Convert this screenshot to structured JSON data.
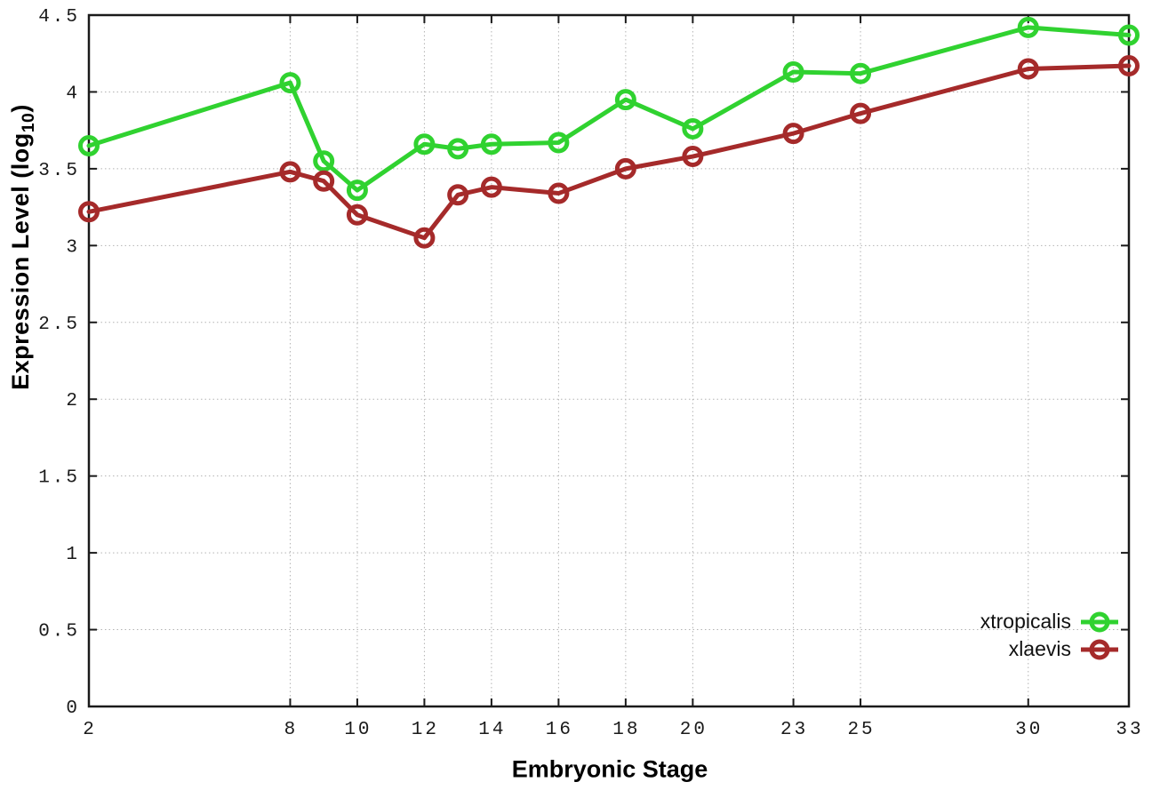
{
  "chart_data": {
    "type": "line",
    "title": "",
    "xlabel": "Embryonic Stage",
    "ylabel_prefix": "Expression Level (log",
    "ylabel_subscript": "10",
    "ylabel_suffix": ")",
    "xlim": [
      2,
      33
    ],
    "ylim": [
      0,
      4.5
    ],
    "grid": true,
    "legend_position": "bottom-right-inside",
    "x_ticks": [
      {
        "label": "2",
        "value": 2
      },
      {
        "label": "8",
        "value": 8
      },
      {
        "label": "10",
        "value": 10
      },
      {
        "label": "12",
        "value": 12
      },
      {
        "label": "14",
        "value": 14
      },
      {
        "label": "16",
        "value": 16
      },
      {
        "label": "18",
        "value": 18
      },
      {
        "label": "20",
        "value": 20
      },
      {
        "label": "23",
        "value": 23
      },
      {
        "label": "25",
        "value": 25
      },
      {
        "label": "30",
        "value": 30
      },
      {
        "label": "33",
        "value": 33
      }
    ],
    "y_ticks": [
      {
        "label": "0",
        "value": 0
      },
      {
        "label": "0.5",
        "value": 0.5
      },
      {
        "label": "1",
        "value": 1
      },
      {
        "label": "1.5",
        "value": 1.5
      },
      {
        "label": "2",
        "value": 2
      },
      {
        "label": "2.5",
        "value": 2.5
      },
      {
        "label": "3",
        "value": 3
      },
      {
        "label": "3.5",
        "value": 3.5
      },
      {
        "label": "4",
        "value": 4
      },
      {
        "label": "4.5",
        "value": 4.5
      }
    ],
    "x": [
      2,
      8,
      9,
      10,
      12,
      13,
      14,
      16,
      18,
      20,
      23,
      25,
      30,
      33
    ],
    "series": [
      {
        "name": "xtropicalis",
        "color": "#30d230",
        "marker": "open-circle",
        "values": [
          3.65,
          4.06,
          3.55,
          3.36,
          3.66,
          3.63,
          3.66,
          3.67,
          3.95,
          3.76,
          4.13,
          4.12,
          4.42,
          4.37
        ]
      },
      {
        "name": "xlaevis",
        "color": "#a52a2a",
        "marker": "open-circle",
        "values": [
          3.22,
          3.48,
          3.42,
          3.2,
          3.05,
          3.33,
          3.38,
          3.34,
          3.5,
          3.58,
          3.73,
          3.86,
          4.15,
          4.17
        ]
      }
    ]
  }
}
